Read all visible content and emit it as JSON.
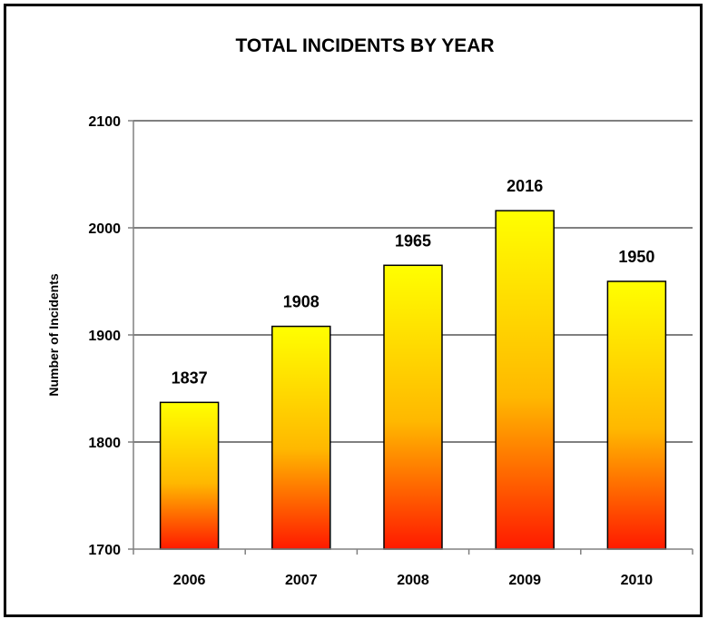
{
  "chart_data": {
    "type": "bar",
    "title": "TOTAL INCIDENTS BY YEAR",
    "xlabel": "",
    "ylabel": "Number of Incidents",
    "categories": [
      "2006",
      "2007",
      "2008",
      "2009",
      "2010"
    ],
    "values": [
      1837,
      1908,
      1965,
      2016,
      1950
    ],
    "data_labels": [
      "1837",
      "1908",
      "1965",
      "2016",
      "1950"
    ],
    "ylim": [
      1700,
      2100
    ],
    "yticks": [
      "1700",
      "1800",
      "1900",
      "2000",
      "2100"
    ],
    "grid": true,
    "legend": "none",
    "bar_gradient": {
      "top": "#ffff00",
      "bottom": "#ff1a00"
    }
  }
}
